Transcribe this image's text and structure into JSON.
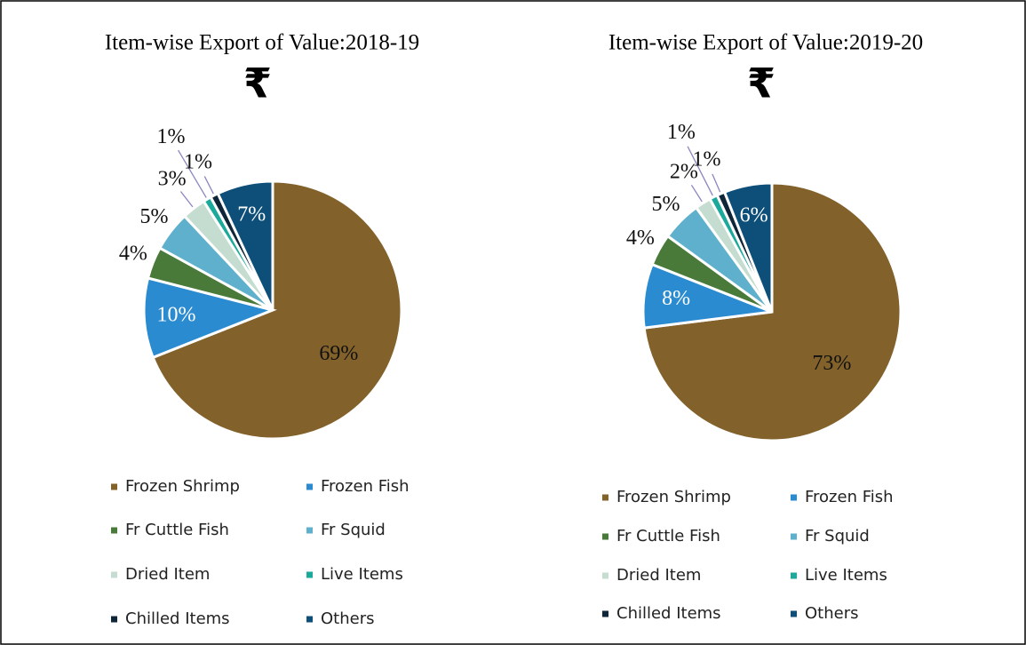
{
  "chart_data": [
    {
      "type": "pie",
      "title": "Item-wise Export of Value:2018-19",
      "subtitle": "₹",
      "categories": [
        "Frozen Shrimp",
        "Frozen Fish",
        "Fr Cuttle Fish",
        "Fr Squid",
        "Dried Item",
        "Live Items",
        "Chilled Items",
        "Others"
      ],
      "values": [
        69,
        10,
        4,
        5,
        3,
        1,
        1,
        7
      ],
      "value_labels": [
        "69%",
        "10%",
        "4%",
        "5%",
        "3%",
        "1%",
        "1%",
        "7%"
      ],
      "colors": [
        "#82612a",
        "#2a8bd0",
        "#4a7a3a",
        "#5fb0cc",
        "#c5ddd0",
        "#1aa99a",
        "#0f2538",
        "#0d4f78"
      ],
      "legend": "bottom"
    },
    {
      "type": "pie",
      "title": "Item-wise Export of Value:2019-20",
      "subtitle": "₹",
      "categories": [
        "Frozen Shrimp",
        "Frozen Fish",
        "Fr Cuttle Fish",
        "Fr Squid",
        "Dried Item",
        "Live Items",
        "Chilled Items",
        "Others"
      ],
      "values": [
        73,
        8,
        4,
        5,
        2,
        1,
        1,
        6
      ],
      "value_labels": [
        "73%",
        "8%",
        "4%",
        "5%",
        "2%",
        "1%",
        "1%",
        "6%"
      ],
      "colors": [
        "#82612a",
        "#2a8bd0",
        "#4a7a3a",
        "#5fb0cc",
        "#c5ddd0",
        "#1aa99a",
        "#0f2538",
        "#0d4f78"
      ],
      "legend": "bottom"
    }
  ]
}
